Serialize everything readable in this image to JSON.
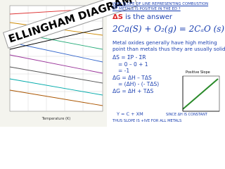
{
  "diagram": {
    "banner": "ELLINGHAM DIAGRAM",
    "x_label": "Temperature (K)"
  },
  "notes": {
    "question": [
      "WHY SLOPE OF LINE REPRESENTING COMBUSTION",
      "OF METALS IS POSITIVE IN THE ED ?"
    ],
    "answer_symbol": "ΔS",
    "answer_text": "is the answer",
    "reaction": "2Ca(S) + O₂(g) = 2CₐO (s)",
    "explanation": [
      "Metal oxides generally have high melting",
      "point than metals thus they are usually solid"
    ],
    "derivation": [
      "ΔS = ΣP - ΣR",
      "= 0 – 0 + 1",
      "= -1",
      "ΔG = ΔH – TΔS",
      "= (ΔH) - (- TΔS)",
      "ΔG = ΔH + TΔS"
    ],
    "graph_label": "Positive Slope",
    "line_equation": "Y  =   C  +  XM",
    "since": "SINCE ΔH IS CONSTANT",
    "conclusion": "THUS SLOPE IS +IVE FOR ALL METALS"
  }
}
